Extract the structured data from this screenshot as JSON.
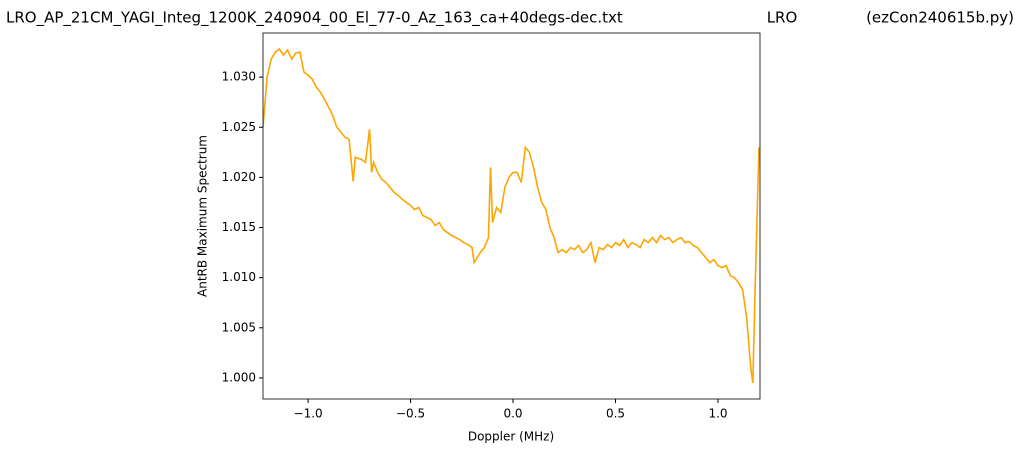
{
  "chart_data": {
    "type": "line",
    "title_parts": [
      "LRO_AP_21CM_YAGI_Integ_1200K_240904_00_El_77-0_Az_163_ca+40degs-dec.txt",
      "LRO",
      "(ezCon240615b.py)"
    ],
    "x_label": "Doppler (MHz)",
    "y_label": "AntRB Maximum Spectrum",
    "x": [
      -1.22,
      -1.2,
      -1.18,
      -1.16,
      -1.14,
      -1.12,
      -1.1,
      -1.08,
      -1.06,
      -1.04,
      -1.02,
      -1.0,
      -0.98,
      -0.96,
      -0.94,
      -0.92,
      -0.9,
      -0.88,
      -0.86,
      -0.84,
      -0.82,
      -0.8,
      -0.78,
      -0.77,
      -0.74,
      -0.72,
      -0.7,
      -0.69,
      -0.68,
      -0.66,
      -0.64,
      -0.62,
      -0.6,
      -0.58,
      -0.56,
      -0.54,
      -0.52,
      -0.5,
      -0.48,
      -0.46,
      -0.44,
      -0.42,
      -0.4,
      -0.38,
      -0.36,
      -0.34,
      -0.32,
      -0.3,
      -0.28,
      -0.26,
      -0.24,
      -0.22,
      -0.2,
      -0.19,
      -0.16,
      -0.14,
      -0.12,
      -0.11,
      -0.1,
      -0.08,
      -0.06,
      -0.04,
      -0.02,
      0.0,
      0.02,
      0.04,
      0.06,
      0.08,
      0.1,
      0.12,
      0.14,
      0.16,
      0.18,
      0.2,
      0.22,
      0.24,
      0.26,
      0.28,
      0.3,
      0.32,
      0.34,
      0.36,
      0.38,
      0.4,
      0.42,
      0.44,
      0.46,
      0.48,
      0.5,
      0.52,
      0.54,
      0.56,
      0.58,
      0.6,
      0.62,
      0.64,
      0.66,
      0.68,
      0.7,
      0.72,
      0.74,
      0.76,
      0.78,
      0.8,
      0.82,
      0.84,
      0.86,
      0.88,
      0.9,
      0.92,
      0.94,
      0.96,
      0.98,
      1.0,
      1.02,
      1.04,
      1.06,
      1.08,
      1.1,
      1.12,
      1.14,
      1.16,
      1.17,
      1.18,
      1.2
    ],
    "series": [
      {
        "color": "#ffa500",
        "values": [
          1.025,
          1.03,
          1.0318,
          1.0325,
          1.0328,
          1.0322,
          1.0327,
          1.0318,
          1.0324,
          1.0325,
          1.0305,
          1.0302,
          1.0298,
          1.029,
          1.0285,
          1.0278,
          1.027,
          1.0262,
          1.025,
          1.0245,
          1.024,
          1.0238,
          1.0196,
          1.022,
          1.0218,
          1.0215,
          1.0248,
          1.0205,
          1.0215,
          1.0205,
          1.0198,
          1.0195,
          1.019,
          1.0185,
          1.0182,
          1.0178,
          1.0175,
          1.0172,
          1.0168,
          1.017,
          1.0162,
          1.016,
          1.0158,
          1.0152,
          1.0155,
          1.0148,
          1.0145,
          1.0142,
          1.014,
          1.0138,
          1.0135,
          1.0133,
          1.013,
          1.0115,
          1.0125,
          1.013,
          1.014,
          1.021,
          1.0155,
          1.017,
          1.0165,
          1.019,
          1.02,
          1.0205,
          1.0205,
          1.0195,
          1.023,
          1.0225,
          1.021,
          1.019,
          1.0175,
          1.0168,
          1.015,
          1.014,
          1.0125,
          1.0128,
          1.0125,
          1.013,
          1.0128,
          1.0132,
          1.0125,
          1.0128,
          1.0135,
          1.0115,
          1.013,
          1.0128,
          1.0133,
          1.013,
          1.0135,
          1.0132,
          1.0138,
          1.013,
          1.0135,
          1.0133,
          1.013,
          1.0138,
          1.0135,
          1.014,
          1.0135,
          1.0142,
          1.0138,
          1.014,
          1.0135,
          1.0138,
          1.014,
          1.0135,
          1.0136,
          1.0132,
          1.013,
          1.0125,
          1.012,
          1.0115,
          1.0118,
          1.0112,
          1.011,
          1.0112,
          1.0102,
          1.01,
          1.0095,
          1.0088,
          1.006,
          1.001,
          0.9995,
          1.008,
          1.023
        ]
      }
    ],
    "xlim": [
      -1.22,
      1.205
    ],
    "ylim": [
      0.9979,
      1.0344
    ],
    "xticks": [
      {
        "value": -1.0,
        "label": "−1.0"
      },
      {
        "value": -0.5,
        "label": "−0.5"
      },
      {
        "value": 0.0,
        "label": "0.0"
      },
      0.5,
      {
        "value": 1.0,
        "label": "1.0"
      }
    ],
    "yticks": [
      {
        "value": 1.0,
        "label": "1.000"
      },
      1.005,
      {
        "value": 1.01,
        "label": "1.010"
      },
      1.015,
      {
        "value": 1.02,
        "label": "1.020"
      },
      1.025,
      {
        "value": 1.03,
        "label": "1.030"
      }
    ]
  }
}
